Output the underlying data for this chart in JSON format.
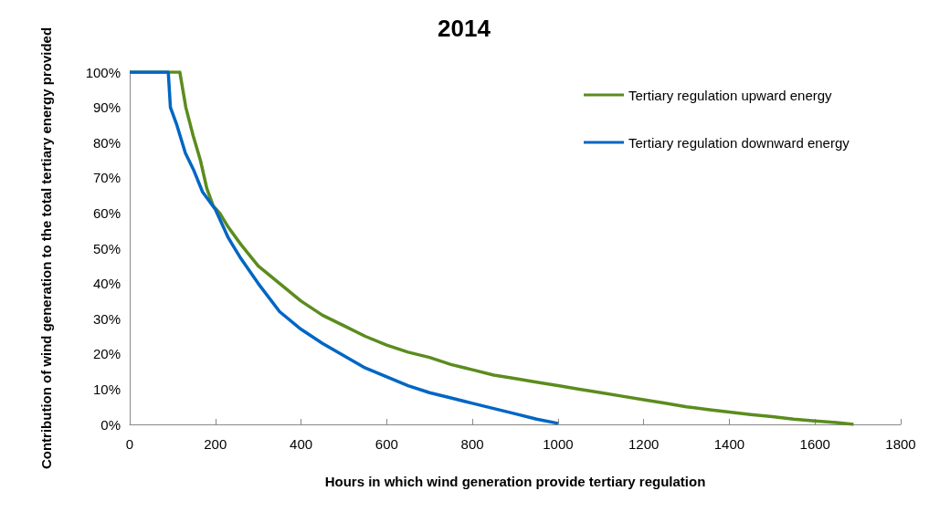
{
  "chart_data": {
    "type": "line",
    "title": "2014",
    "xlabel": "Hours in which wind generation provide tertiary regulation",
    "ylabel": "Contribution of wind generation to the total tertiary energy provided",
    "xlim": [
      0,
      1800
    ],
    "xticks": [
      0,
      200,
      400,
      600,
      800,
      1000,
      1200,
      1400,
      1600,
      1800
    ],
    "ylim": [
      0,
      100
    ],
    "yticks": [
      {
        "value": 0,
        "label": "0%"
      },
      {
        "value": 10,
        "label": "10%"
      },
      {
        "value": 20,
        "label": "20%"
      },
      {
        "value": 30,
        "label": "30%"
      },
      {
        "value": 40,
        "label": "40%"
      },
      {
        "value": 50,
        "label": "50%"
      },
      {
        "value": 60,
        "label": "60%"
      },
      {
        "value": 70,
        "label": "70%"
      },
      {
        "value": 80,
        "label": "80%"
      },
      {
        "value": 90,
        "label": "90%"
      },
      {
        "value": 100,
        "label": "100%"
      }
    ],
    "grid": false,
    "legend": "top right",
    "marker": "none",
    "line_style": "solid",
    "series": [
      {
        "name": "Tertiary regulation upward energy",
        "color": "#5b8c1e",
        "x": [
          0,
          117,
          131,
          148,
          165,
          180,
          195,
          210,
          230,
          260,
          300,
          350,
          400,
          450,
          500,
          550,
          600,
          650,
          700,
          750,
          800,
          850,
          900,
          950,
          1000,
          1050,
          1100,
          1150,
          1200,
          1250,
          1300,
          1350,
          1400,
          1450,
          1500,
          1550,
          1600,
          1650,
          1690
        ],
        "values": [
          100,
          100,
          90,
          82,
          75,
          67,
          62,
          60,
          56,
          51,
          45,
          40,
          35,
          31,
          28,
          25,
          22.5,
          20.5,
          19,
          17,
          15.5,
          14,
          13,
          12,
          11,
          10,
          9,
          8,
          7,
          6,
          5,
          4.2,
          3.5,
          2.8,
          2.2,
          1.5,
          1,
          0.5,
          0
        ]
      },
      {
        "name": "Tertiary regulation downward energy",
        "color": "#0066c4",
        "x": [
          0,
          90,
          95,
          110,
          130,
          150,
          170,
          200,
          230,
          260,
          300,
          350,
          400,
          450,
          500,
          550,
          600,
          650,
          700,
          750,
          800,
          850,
          900,
          950,
          1000
        ],
        "values": [
          100,
          100,
          90,
          85,
          77,
          72,
          66,
          61,
          53,
          47,
          40,
          32,
          27,
          23,
          19.5,
          16,
          13.5,
          11,
          9,
          7.5,
          6,
          4.5,
          3,
          1.5,
          0.3
        ]
      }
    ]
  }
}
